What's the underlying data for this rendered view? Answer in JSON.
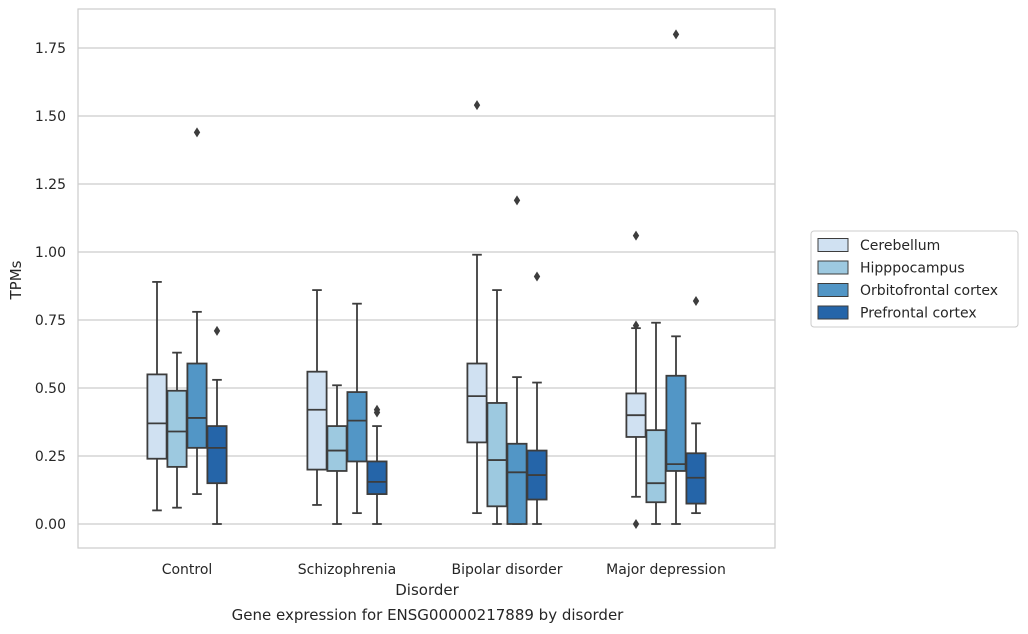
{
  "chart_data": {
    "type": "boxplot",
    "title": "",
    "caption": "Gene expression for ENSG00000217889 by disorder",
    "xlabel": "Disorder",
    "ylabel": "TPMs",
    "ylim": [
      -0.09,
      1.89
    ],
    "yticks": [
      "0.00",
      "0.25",
      "0.50",
      "0.75",
      "1.00",
      "1.25",
      "1.50",
      "1.75"
    ],
    "ytick_values": [
      0,
      0.25,
      0.5,
      0.75,
      1.0,
      1.25,
      1.5,
      1.75
    ],
    "grid": true,
    "legend_position": "right",
    "categories": [
      "Control",
      "Schizophrenia",
      "Bipolar disorder",
      "Major depression"
    ],
    "series": [
      {
        "name": "Cerebellum",
        "color": "#d0e1f2",
        "boxes": [
          {
            "whislo": 0.05,
            "q1": 0.24,
            "med": 0.37,
            "q3": 0.55,
            "whishi": 0.89,
            "fliers": []
          },
          {
            "whislo": 0.07,
            "q1": 0.2,
            "med": 0.42,
            "q3": 0.56,
            "whishi": 0.86,
            "fliers": []
          },
          {
            "whislo": 0.04,
            "q1": 0.3,
            "med": 0.47,
            "q3": 0.59,
            "whishi": 0.99,
            "fliers": [
              1.54
            ]
          },
          {
            "whislo": 0.1,
            "q1": 0.32,
            "med": 0.4,
            "q3": 0.48,
            "whishi": 0.72,
            "fliers": [
              0.0,
              0.73,
              1.06
            ]
          }
        ]
      },
      {
        "name": "Hipppocampus",
        "color": "#9dc9e0",
        "boxes": [
          {
            "whislo": 0.06,
            "q1": 0.21,
            "med": 0.34,
            "q3": 0.49,
            "whishi": 0.63,
            "fliers": []
          },
          {
            "whislo": 0.0,
            "q1": 0.195,
            "med": 0.27,
            "q3": 0.36,
            "whishi": 0.51,
            "fliers": []
          },
          {
            "whislo": 0.0,
            "q1": 0.065,
            "med": 0.235,
            "q3": 0.445,
            "whishi": 0.86,
            "fliers": []
          },
          {
            "whislo": 0.0,
            "q1": 0.08,
            "med": 0.15,
            "q3": 0.345,
            "whishi": 0.74,
            "fliers": []
          }
        ]
      },
      {
        "name": "Orbitofrontal cortex",
        "color": "#5296c6",
        "boxes": [
          {
            "whislo": 0.11,
            "q1": 0.28,
            "med": 0.39,
            "q3": 0.59,
            "whishi": 0.78,
            "fliers": [
              1.44
            ]
          },
          {
            "whislo": 0.04,
            "q1": 0.23,
            "med": 0.38,
            "q3": 0.485,
            "whishi": 0.81,
            "fliers": []
          },
          {
            "whislo": 0.0,
            "q1": 0.0,
            "med": 0.19,
            "q3": 0.295,
            "whishi": 0.54,
            "fliers": [
              1.19
            ]
          },
          {
            "whislo": 0.0,
            "q1": 0.195,
            "med": 0.22,
            "q3": 0.545,
            "whishi": 0.69,
            "fliers": [
              1.8
            ]
          }
        ]
      },
      {
        "name": "Prefrontal cortex",
        "color": "#2565a9",
        "boxes": [
          {
            "whislo": 0.0,
            "q1": 0.15,
            "med": 0.28,
            "q3": 0.36,
            "whishi": 0.53,
            "fliers": [
              0.71
            ]
          },
          {
            "whislo": 0.0,
            "q1": 0.11,
            "med": 0.155,
            "q3": 0.23,
            "whishi": 0.36,
            "fliers": [
              0.41,
              0.42
            ]
          },
          {
            "whislo": 0.0,
            "q1": 0.09,
            "med": 0.18,
            "q3": 0.27,
            "whishi": 0.52,
            "fliers": [
              0.91
            ]
          },
          {
            "whislo": 0.04,
            "q1": 0.075,
            "med": 0.17,
            "q3": 0.26,
            "whishi": 0.37,
            "fliers": [
              0.82
            ]
          }
        ]
      }
    ]
  }
}
